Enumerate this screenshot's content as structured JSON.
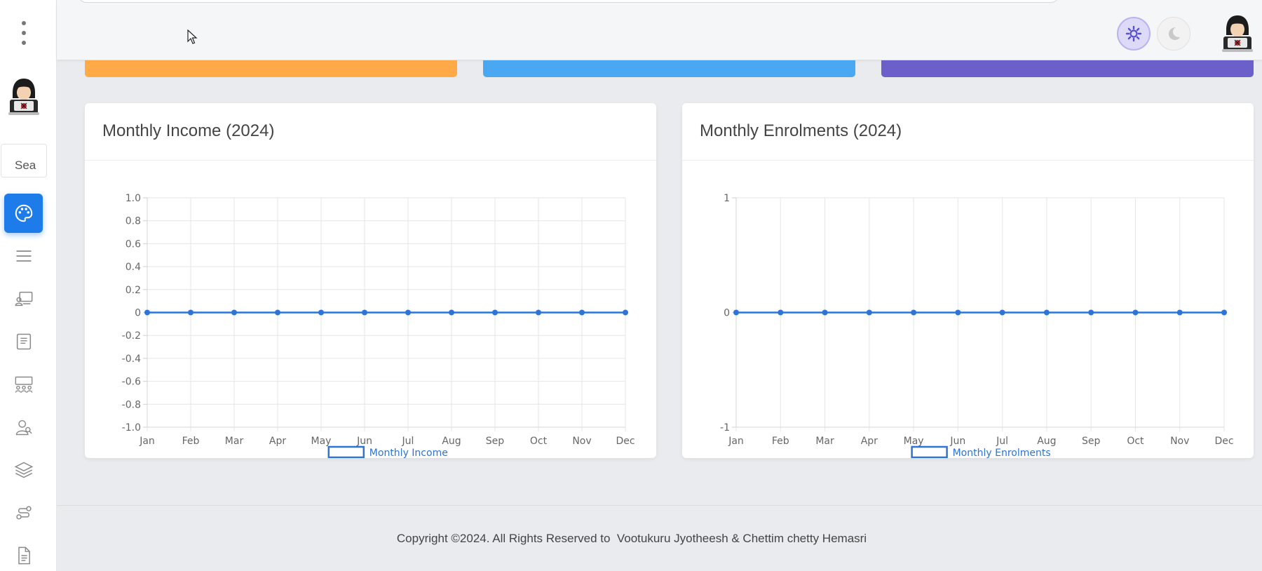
{
  "sidebar": {
    "search_placeholder": "Sea",
    "nav": [
      {
        "name": "palette-icon",
        "active": true
      },
      {
        "name": "menu-lines-icon"
      },
      {
        "name": "monitor-user-icon"
      },
      {
        "name": "book-icon"
      },
      {
        "name": "group-icon"
      },
      {
        "name": "user-search-icon"
      },
      {
        "name": "layers-icon"
      },
      {
        "name": "route-icon"
      },
      {
        "name": "document-icon"
      }
    ]
  },
  "header": {
    "light_mode_icon": "gear-sun-icon",
    "dark_mode_icon": "moon-icon"
  },
  "colors": {
    "accent": "#1e7bea",
    "stat_orange": "#ffa947",
    "stat_blue": "#4aa8f3",
    "stat_purple": "#6b5fc9",
    "line": "#2d74d6"
  },
  "cards": {
    "income_title": "Monthly Income (2024)",
    "enrolments_title": "Monthly Enrolments (2024)"
  },
  "chart_data": [
    {
      "type": "line",
      "title": "Monthly Income (2024)",
      "categories": [
        "Jan",
        "Feb",
        "Mar",
        "Apr",
        "May",
        "Jun",
        "Jul",
        "Aug",
        "Sep",
        "Oct",
        "Nov",
        "Dec"
      ],
      "series": [
        {
          "name": "Monthly Income",
          "values": [
            0,
            0,
            0,
            0,
            0,
            0,
            0,
            0,
            0,
            0,
            0,
            0
          ]
        }
      ],
      "ylim": [
        -1.0,
        1.0
      ],
      "yticks": [
        "1.0",
        "0.8",
        "0.6",
        "0.4",
        "0.2",
        "0",
        "-0.2",
        "-0.4",
        "-0.6",
        "-0.8",
        "-1.0"
      ],
      "legend": "bottom",
      "grid": true
    },
    {
      "type": "line",
      "title": "Monthly Enrolments (2024)",
      "categories": [
        "Jan",
        "Feb",
        "Mar",
        "Apr",
        "May",
        "Jun",
        "Jul",
        "Aug",
        "Sep",
        "Oct",
        "Nov",
        "Dec"
      ],
      "series": [
        {
          "name": "Monthly Enrolments",
          "values": [
            0,
            0,
            0,
            0,
            0,
            0,
            0,
            0,
            0,
            0,
            0,
            0
          ]
        }
      ],
      "ylim": [
        -1,
        1
      ],
      "yticks": [
        "1",
        "0",
        "-1"
      ],
      "legend": "bottom",
      "grid": true
    }
  ],
  "footer": {
    "copyright": "Copyright ©2024. All Rights Reserved to  Vootukuru Jyotheesh & Chettim chetty Hemasri"
  }
}
